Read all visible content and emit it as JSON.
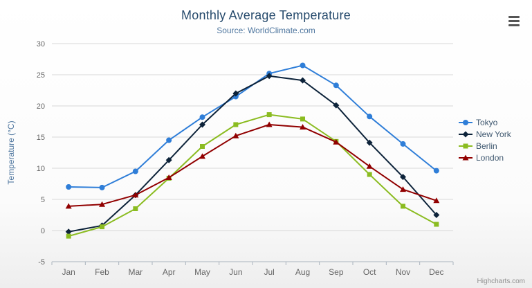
{
  "header": {
    "title": "Monthly Average Temperature",
    "subtitle": "Source: WorldClimate.com"
  },
  "credits": {
    "label": "Highcharts.com"
  },
  "colors": {
    "title": "#274b6d",
    "subtitle": "#4d759e",
    "axis_label": "#666666",
    "axis_title": "#4d759e",
    "gridline": "#d8d8d8",
    "axis_line": "#aab4be",
    "legend_text": "#3e576f"
  },
  "chart_data": {
    "type": "line",
    "title": "Monthly Average Temperature",
    "subtitle": "Source: WorldClimate.com",
    "xlabel": "",
    "ylabel": "Temperature (°C)",
    "ylim": [
      -5,
      30
    ],
    "ytick_step": 5,
    "grid": true,
    "legend_position": "right",
    "categories": [
      "Jan",
      "Feb",
      "Mar",
      "Apr",
      "May",
      "Jun",
      "Jul",
      "Aug",
      "Sep",
      "Oct",
      "Nov",
      "Dec"
    ],
    "series": [
      {
        "name": "Tokyo",
        "color": "#2f7ed8",
        "marker": "circle",
        "values": [
          7.0,
          6.9,
          9.5,
          14.5,
          18.2,
          21.5,
          25.2,
          26.5,
          23.3,
          18.3,
          13.9,
          9.6
        ]
      },
      {
        "name": "New York",
        "color": "#0d233a",
        "marker": "diamond",
        "values": [
          -0.2,
          0.8,
          5.7,
          11.3,
          17.0,
          22.0,
          24.8,
          24.1,
          20.1,
          14.1,
          8.6,
          2.5
        ]
      },
      {
        "name": "Berlin",
        "color": "#8bbc21",
        "marker": "square",
        "values": [
          -0.9,
          0.6,
          3.5,
          8.4,
          13.5,
          17.0,
          18.6,
          17.9,
          14.3,
          9.0,
          3.9,
          1.0
        ]
      },
      {
        "name": "London",
        "color": "#910000",
        "marker": "triangle",
        "values": [
          3.9,
          4.2,
          5.7,
          8.5,
          11.9,
          15.2,
          17.0,
          16.6,
          14.2,
          10.3,
          6.6,
          4.8
        ]
      }
    ]
  }
}
